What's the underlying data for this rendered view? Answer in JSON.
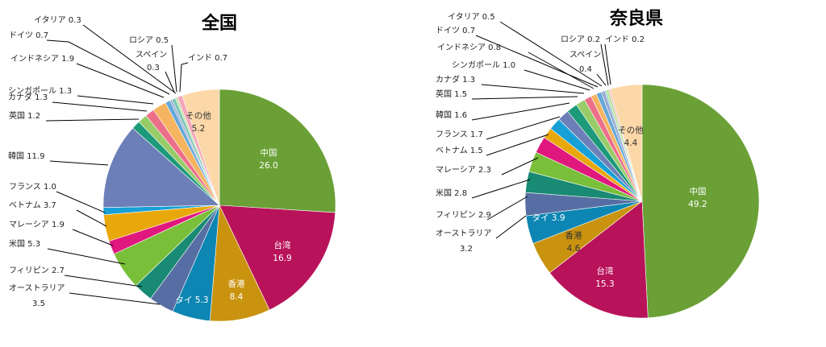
{
  "chart_data": [
    {
      "type": "pie",
      "title": "全国",
      "slices": [
        {
          "name": "中国",
          "value": 26.0,
          "color": "#6aa035"
        },
        {
          "name": "台湾",
          "value": 16.9,
          "color": "#b8125a"
        },
        {
          "name": "香港",
          "value": 8.4,
          "color": "#c9930f"
        },
        {
          "name": "タイ",
          "value": 5.3,
          "color": "#0d86b3"
        },
        {
          "name": "オーストラリア",
          "value": 3.5,
          "color": "#566ea3"
        },
        {
          "name": "フィリピン",
          "value": 2.7,
          "color": "#198a73"
        },
        {
          "name": "米国",
          "value": 5.3,
          "color": "#7abf3a"
        },
        {
          "name": "マレーシア",
          "value": 1.9,
          "color": "#e0187d"
        },
        {
          "name": "ベトナム",
          "value": 3.7,
          "color": "#e8a80c"
        },
        {
          "name": "フランス",
          "value": 1.0,
          "color": "#16a0d6"
        },
        {
          "name": "韓国",
          "value": 11.9,
          "color": "#6c7fb8"
        },
        {
          "name": "英国",
          "value": 1.2,
          "color": "#1d9a7a"
        },
        {
          "name": "カナダ",
          "value": 1.3,
          "color": "#97cc68"
        },
        {
          "name": "シンガポール",
          "value": 1.3,
          "color": "#ec6f8a"
        },
        {
          "name": "インドネシア",
          "value": 1.9,
          "color": "#f5b45f"
        },
        {
          "name": "ドイツ",
          "value": 0.7,
          "color": "#66a8d8"
        },
        {
          "name": "イタリア",
          "value": 0.3,
          "color": "#9aaad4"
        },
        {
          "name": "ロシア",
          "value": 0.5,
          "color": "#7cc6b6"
        },
        {
          "name": "スペイン",
          "value": 0.3,
          "color": "#c1e1a0"
        },
        {
          "name": "インド",
          "value": 0.7,
          "color": "#f4a6b8"
        },
        {
          "name": "その他",
          "value": 5.2,
          "color": "#fcd7a7"
        }
      ]
    },
    {
      "type": "pie",
      "title": "奈良県",
      "slices": [
        {
          "name": "中国",
          "value": 49.2,
          "color": "#6aa035"
        },
        {
          "name": "台湾",
          "value": 15.3,
          "color": "#b8125a"
        },
        {
          "name": "香港",
          "value": 4.6,
          "color": "#c9930f"
        },
        {
          "name": "タイ",
          "value": 3.9,
          "color": "#0d86b3"
        },
        {
          "name": "オーストラリア",
          "value": 3.2,
          "color": "#566ea3"
        },
        {
          "name": "フィリピン",
          "value": 2.9,
          "color": "#198a73"
        },
        {
          "name": "米国",
          "value": 2.8,
          "color": "#7abf3a"
        },
        {
          "name": "マレーシア",
          "value": 2.3,
          "color": "#e0187d"
        },
        {
          "name": "ベトナム",
          "value": 1.5,
          "color": "#e8a80c"
        },
        {
          "name": "フランス",
          "value": 1.7,
          "color": "#16a0d6"
        },
        {
          "name": "韓国",
          "value": 1.6,
          "color": "#6c7fb8"
        },
        {
          "name": "英国",
          "value": 1.5,
          "color": "#1d9a7a"
        },
        {
          "name": "カナダ",
          "value": 1.3,
          "color": "#97cc68"
        },
        {
          "name": "シンガポール",
          "value": 1.0,
          "color": "#ec6f8a"
        },
        {
          "name": "インドネシア",
          "value": 0.8,
          "color": "#f5b45f"
        },
        {
          "name": "ドイツ",
          "value": 0.7,
          "color": "#66a8d8"
        },
        {
          "name": "イタリア",
          "value": 0.5,
          "color": "#9aaad4"
        },
        {
          "name": "ロシア",
          "value": 0.2,
          "color": "#7cc6b6"
        },
        {
          "name": "スペイン",
          "value": 0.4,
          "color": "#c1e1a0"
        },
        {
          "name": "インド",
          "value": 0.2,
          "color": "#f4a6b8"
        },
        {
          "name": "その他",
          "value": 4.4,
          "color": "#fcd7a7"
        }
      ]
    }
  ]
}
